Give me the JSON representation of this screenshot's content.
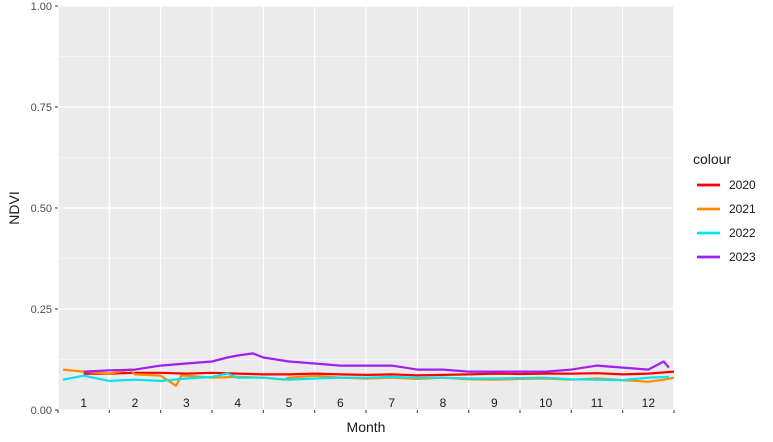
{
  "chart_data": {
    "type": "line",
    "xlabel": "Month",
    "ylabel": "NDVI",
    "ylim": [
      0,
      1
    ],
    "y_ticks": [
      "0.00",
      "0.25",
      "0.50",
      "0.75",
      "1.00"
    ],
    "y_tick_values": [
      0,
      0.25,
      0.5,
      0.75,
      1.0
    ],
    "x_tick_labels": [
      "1",
      "2",
      "3",
      "4",
      "5",
      "6",
      "7",
      "8",
      "9",
      "10",
      "11",
      "12"
    ],
    "xlim": [
      0.5,
      12.5
    ],
    "grid": true,
    "legend": {
      "title": "colour",
      "placement": "right"
    },
    "series": [
      {
        "name": "2020",
        "color": "#ff0000",
        "x": [
          1.0,
          1.5,
          2.0,
          2.5,
          3.0,
          3.5,
          4.0,
          4.5,
          5.0,
          5.5,
          6.0,
          6.5,
          7.0,
          7.5,
          8.0,
          8.5,
          9.0,
          9.5,
          10.0,
          10.5,
          11.0,
          11.5,
          12.0,
          12.5
        ],
        "values": [
          0.09,
          0.09,
          0.092,
          0.092,
          0.09,
          0.092,
          0.09,
          0.088,
          0.088,
          0.09,
          0.088,
          0.087,
          0.088,
          0.086,
          0.087,
          0.088,
          0.09,
          0.089,
          0.09,
          0.09,
          0.091,
          0.088,
          0.09,
          0.095
        ]
      },
      {
        "name": "2021",
        "color": "#ff8c00",
        "x": [
          0.6,
          1.0,
          1.5,
          1.9,
          2.0,
          2.5,
          2.8,
          2.9,
          3.0,
          3.5,
          4.0,
          4.5,
          4.9,
          5.0,
          5.5,
          6.0,
          6.5,
          7.0,
          7.5,
          8.0,
          8.5,
          9.0,
          9.5,
          10.0,
          10.5,
          11.0,
          11.5,
          12.0,
          12.3,
          12.5
        ],
        "values": [
          0.1,
          0.095,
          0.09,
          0.1,
          0.088,
          0.085,
          0.06,
          0.085,
          0.085,
          0.08,
          0.082,
          0.08,
          0.075,
          0.08,
          0.085,
          0.08,
          0.078,
          0.08,
          0.077,
          0.08,
          0.076,
          0.075,
          0.077,
          0.078,
          0.075,
          0.078,
          0.074,
          0.07,
          0.075,
          0.08
        ]
      },
      {
        "name": "2022",
        "color": "#00e5ee",
        "x": [
          0.6,
          1.0,
          1.5,
          2.0,
          2.5,
          3.0,
          3.5,
          3.8,
          4.0,
          4.5,
          5.0,
          5.5,
          6.0,
          6.5,
          7.0,
          7.5,
          8.0,
          8.5,
          9.0,
          9.5,
          10.0,
          10.5,
          11.0,
          11.5,
          12.0,
          12.4
        ],
        "values": [
          0.075,
          0.085,
          0.072,
          0.075,
          0.072,
          0.078,
          0.082,
          0.09,
          0.08,
          0.08,
          0.075,
          0.078,
          0.08,
          0.08,
          0.082,
          0.08,
          0.08,
          0.078,
          0.078,
          0.079,
          0.08,
          0.076,
          0.075,
          0.074,
          0.08,
          0.082
        ]
      },
      {
        "name": "2023",
        "color": "#a020f0",
        "x": [
          1.0,
          1.5,
          2.0,
          2.5,
          3.0,
          3.5,
          3.8,
          4.0,
          4.3,
          4.5,
          5.0,
          5.5,
          6.0,
          6.5,
          7.0,
          7.5,
          8.0,
          8.5,
          9.0,
          9.5,
          10.0,
          10.5,
          11.0,
          11.5,
          12.0,
          12.3,
          12.4
        ],
        "values": [
          0.095,
          0.098,
          0.1,
          0.11,
          0.115,
          0.12,
          0.13,
          0.135,
          0.14,
          0.13,
          0.12,
          0.115,
          0.11,
          0.11,
          0.11,
          0.1,
          0.1,
          0.095,
          0.095,
          0.095,
          0.095,
          0.1,
          0.11,
          0.105,
          0.1,
          0.12,
          0.105
        ]
      }
    ]
  }
}
